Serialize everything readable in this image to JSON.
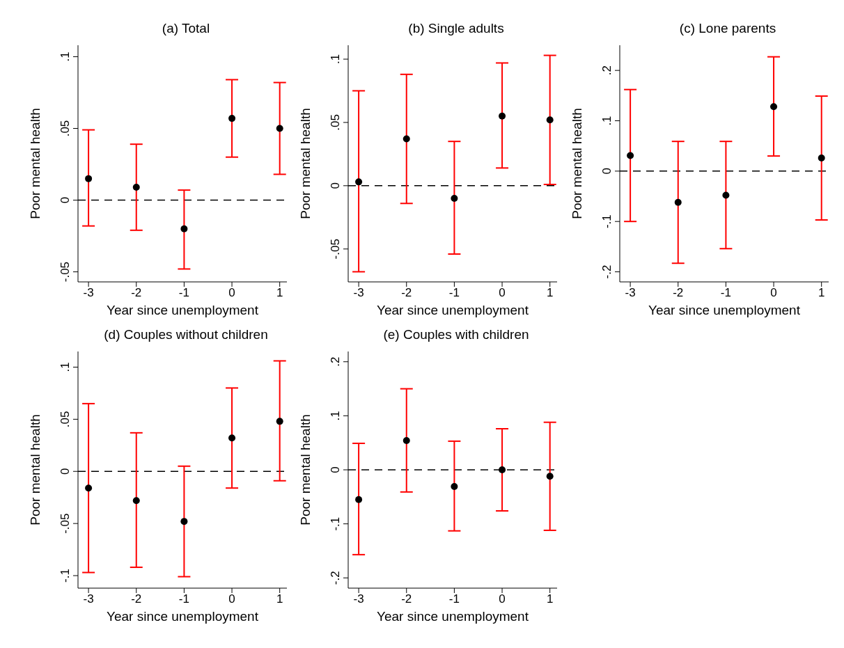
{
  "chart_data": [
    {
      "type": "scatter",
      "title": "(a) Total",
      "xlabel": "Year since unemployment",
      "ylabel": "Poor mental health",
      "x": [
        -3,
        -2,
        -1,
        0,
        1
      ],
      "series": [
        {
          "color": "#000000",
          "values": [
            0.015,
            0.009,
            -0.02,
            0.057,
            0.05
          ],
          "errors": [
            [
              -0.018,
              0.049
            ],
            [
              -0.021,
              0.039
            ],
            [
              -0.048,
              0.007
            ],
            [
              0.03,
              0.084
            ],
            [
              0.018,
              0.082
            ]
          ]
        }
      ],
      "xlim": [
        -3.22,
        1.15
      ],
      "xticks": [
        -3,
        -2,
        -1,
        0,
        1
      ],
      "ylim": [
        -0.057,
        0.108
      ],
      "yticks": [
        {
          "value": -0.05,
          "label": "-.05"
        },
        {
          "value": 0,
          "label": "0"
        },
        {
          "value": 0.05,
          "label": ".05"
        },
        {
          "value": 0.1,
          "label": ".1"
        }
      ],
      "ref_lines": [
        {
          "axis": "y",
          "value": 0,
          "line_style": "dashed",
          "color": "#000000"
        }
      ],
      "marker": "circle",
      "grid": false
    },
    {
      "type": "scatter",
      "title": "(b) Single adults",
      "xlabel": "Year since unemployment",
      "ylabel": "Poor mental health",
      "x": [
        -3,
        -2,
        -1,
        0,
        1
      ],
      "series": [
        {
          "color": "#000000",
          "values": [
            0.003,
            0.037,
            -0.01,
            0.055,
            0.052
          ],
          "errors": [
            [
              -0.068,
              0.075
            ],
            [
              -0.014,
              0.088
            ],
            [
              -0.054,
              0.035
            ],
            [
              0.014,
              0.097
            ],
            [
              0.001,
              0.103
            ]
          ]
        }
      ],
      "xlim": [
        -3.22,
        1.15
      ],
      "xticks": [
        -3,
        -2,
        -1,
        0,
        1
      ],
      "ylim": [
        -0.076,
        0.111
      ],
      "yticks": [
        {
          "value": -0.05,
          "label": "-.05"
        },
        {
          "value": 0,
          "label": "0"
        },
        {
          "value": 0.05,
          "label": ".05"
        },
        {
          "value": 0.1,
          "label": ".1"
        }
      ],
      "ref_lines": [
        {
          "axis": "y",
          "value": 0,
          "line_style": "dashed",
          "color": "#000000"
        }
      ],
      "marker": "circle",
      "grid": false
    },
    {
      "type": "scatter",
      "title": "(c) Lone parents",
      "xlabel": "Year since unemployment",
      "ylabel": "Poor mental health",
      "x": [
        -3,
        -2,
        -1,
        0,
        1
      ],
      "series": [
        {
          "color": "#000000",
          "values": [
            0.031,
            -0.062,
            -0.048,
            0.128,
            0.026
          ],
          "errors": [
            [
              -0.1,
              0.162
            ],
            [
              -0.183,
              0.059
            ],
            [
              -0.154,
              0.059
            ],
            [
              0.03,
              0.227
            ],
            [
              -0.097,
              0.149
            ]
          ]
        }
      ],
      "xlim": [
        -3.22,
        1.15
      ],
      "xticks": [
        -3,
        -2,
        -1,
        0,
        1
      ],
      "ylim": [
        -0.22,
        0.25
      ],
      "yticks": [
        {
          "value": -0.2,
          "label": "-.2"
        },
        {
          "value": -0.1,
          "label": "-.1"
        },
        {
          "value": 0,
          "label": "0"
        },
        {
          "value": 0.1,
          "label": ".1"
        },
        {
          "value": 0.2,
          "label": ".2"
        }
      ],
      "ref_lines": [
        {
          "axis": "y",
          "value": 0,
          "line_style": "dashed",
          "color": "#000000"
        }
      ],
      "marker": "circle",
      "grid": false
    },
    {
      "type": "scatter",
      "title": "(d) Couples without children",
      "xlabel": "Year since unemployment",
      "ylabel": "Poor mental health",
      "x": [
        -3,
        -2,
        -1,
        0,
        1
      ],
      "series": [
        {
          "color": "#000000",
          "values": [
            -0.016,
            -0.028,
            -0.048,
            0.032,
            0.048
          ],
          "errors": [
            [
              -0.097,
              0.065
            ],
            [
              -0.092,
              0.037
            ],
            [
              -0.101,
              0.005
            ],
            [
              -0.016,
              0.08
            ],
            [
              -0.009,
              0.106
            ]
          ]
        }
      ],
      "xlim": [
        -3.22,
        1.15
      ],
      "xticks": [
        -3,
        -2,
        -1,
        0,
        1
      ],
      "ylim": [
        -0.112,
        0.115
      ],
      "yticks": [
        {
          "value": -0.1,
          "label": "-.1"
        },
        {
          "value": -0.05,
          "label": "-.05"
        },
        {
          "value": 0,
          "label": "0"
        },
        {
          "value": 0.05,
          "label": ".05"
        },
        {
          "value": 0.1,
          "label": ".1"
        }
      ],
      "ref_lines": [
        {
          "axis": "y",
          "value": 0,
          "line_style": "dashed",
          "color": "#000000"
        }
      ],
      "marker": "circle",
      "grid": false
    },
    {
      "type": "scatter",
      "title": "(e) Couples with children",
      "xlabel": "Year since unemployment",
      "ylabel": "Poor mental health",
      "x": [
        -3,
        -2,
        -1,
        0,
        1
      ],
      "series": [
        {
          "color": "#000000",
          "values": [
            -0.055,
            0.054,
            -0.031,
            0.0,
            -0.012
          ],
          "errors": [
            [
              -0.157,
              0.049
            ],
            [
              -0.041,
              0.15
            ],
            [
              -0.113,
              0.053
            ],
            [
              -0.076,
              0.076
            ],
            [
              -0.112,
              0.088
            ]
          ]
        }
      ],
      "xlim": [
        -3.22,
        1.15
      ],
      "xticks": [
        -3,
        -2,
        -1,
        0,
        1
      ],
      "ylim": [
        -0.219,
        0.219
      ],
      "yticks": [
        {
          "value": -0.2,
          "label": "-.2"
        },
        {
          "value": -0.1,
          "label": "-.1"
        },
        {
          "value": 0,
          "label": "0"
        },
        {
          "value": 0.1,
          "label": ".1"
        },
        {
          "value": 0.2,
          "label": ".2"
        }
      ],
      "ref_lines": [
        {
          "axis": "y",
          "value": 0,
          "line_style": "dashed",
          "color": "#000000"
        }
      ],
      "marker": "circle",
      "grid": false
    }
  ]
}
